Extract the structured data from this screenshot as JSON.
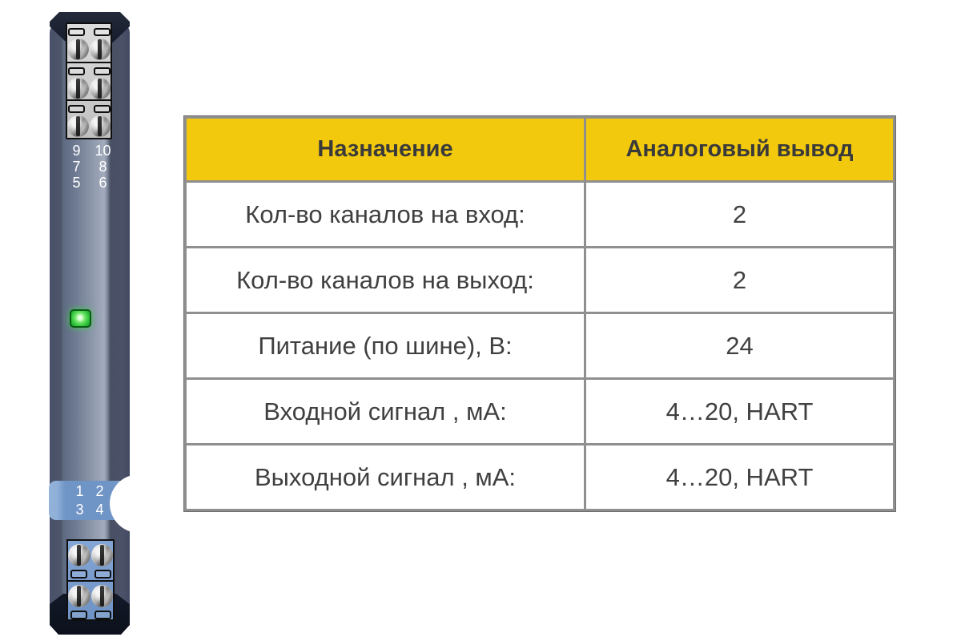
{
  "device": {
    "type_label": "din-rail-signal-converter",
    "led_color": "#3ecb49",
    "top_terminal_numbers": [
      [
        "9",
        "10"
      ],
      [
        "7",
        "8"
      ],
      [
        "5",
        "6"
      ]
    ],
    "bottom_terminal_numbers": [
      [
        "1",
        "2"
      ],
      [
        "3",
        "4"
      ]
    ]
  },
  "table": {
    "header_bg": "#f2c90d",
    "columns": [
      "Назначение",
      "Аналоговый вывод"
    ],
    "rows": [
      {
        "label": "Кол-во каналов на вход:",
        "value": "2"
      },
      {
        "label": "Кол-во каналов на выход:",
        "value": "2"
      },
      {
        "label": "Питание (по шине), В:",
        "value": "24"
      },
      {
        "label": "Входной сигнал , мА:",
        "value": "4…20, HART"
      },
      {
        "label": "Выходной сигнал , мА:",
        "value": "4…20, HART"
      }
    ]
  }
}
